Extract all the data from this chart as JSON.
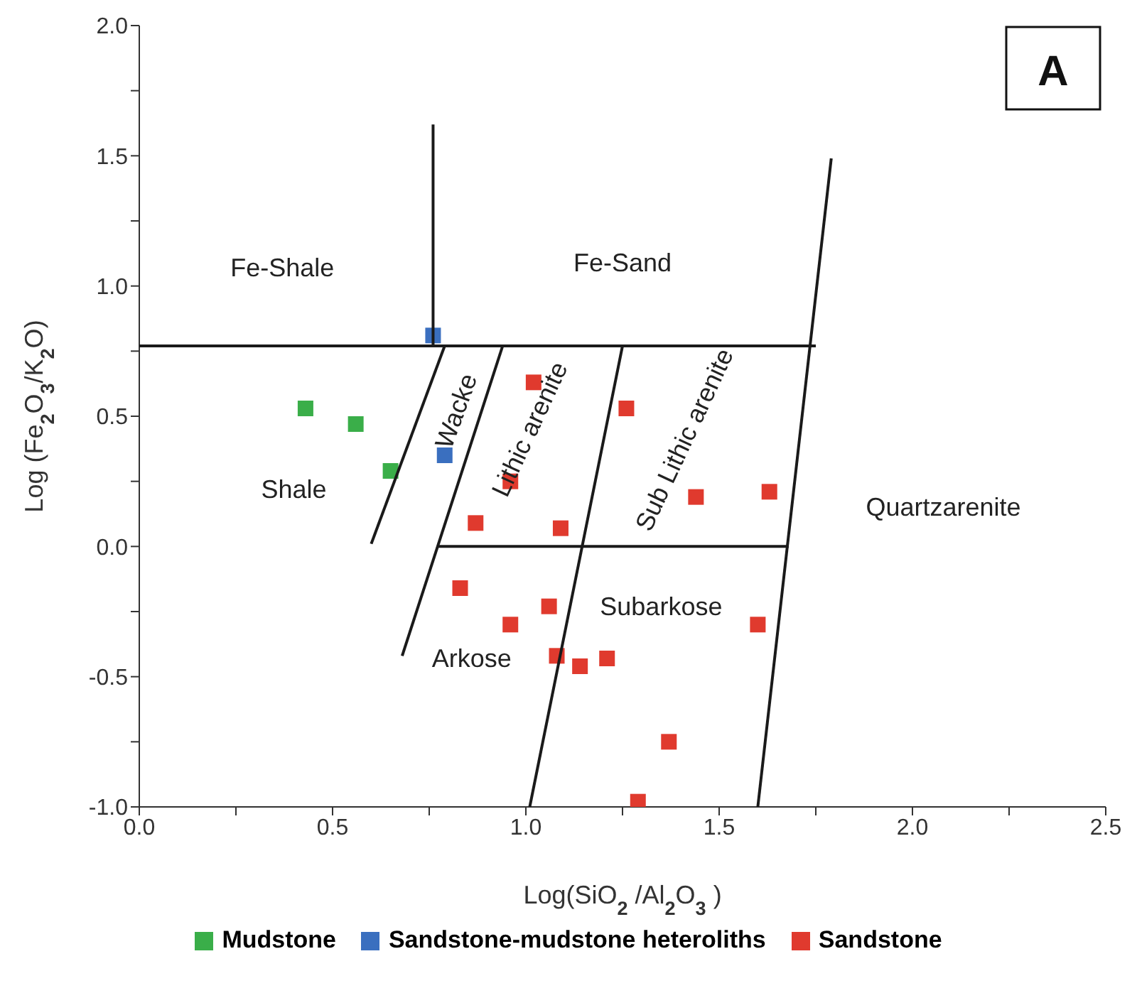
{
  "chart_data": {
    "type": "scatter",
    "xlabel": "Log(SiO$_{2}$ /Al$_{2}$O$_{3}$ )",
    "ylabel": "Log (Fe$_{2}$O$_{3}$/K$_{2}$O)",
    "xlim": [
      0,
      2.5
    ],
    "ylim": [
      -1,
      2
    ],
    "xticks": [
      {
        "value": 0,
        "label": "0.0"
      },
      {
        "value": 0.25,
        "label": null
      },
      {
        "value": 0.5,
        "label": "0.5"
      },
      {
        "value": 0.75,
        "label": null
      },
      {
        "value": 1,
        "label": "1.0"
      },
      {
        "value": 1.25,
        "label": null
      },
      {
        "value": 1.5,
        "label": "1.5"
      },
      {
        "value": 1.75,
        "label": null
      },
      {
        "value": 2,
        "label": "2.0"
      },
      {
        "value": 2.25,
        "label": null
      },
      {
        "value": 2.5,
        "label": "2.5"
      }
    ],
    "yticks": [
      {
        "value": -1,
        "label": "-1.0"
      },
      {
        "value": -0.75,
        "label": null
      },
      {
        "value": -0.5,
        "label": "-0.5"
      },
      {
        "value": -0.25,
        "label": null
      },
      {
        "value": 0,
        "label": "0.0"
      },
      {
        "value": 0.25,
        "label": null
      },
      {
        "value": 0.5,
        "label": "0.5"
      },
      {
        "value": 0.75,
        "label": null
      },
      {
        "value": 1,
        "label": "1.0"
      },
      {
        "value": 1.25,
        "label": null
      },
      {
        "value": 1.5,
        "label": "1.5"
      },
      {
        "value": 1.75,
        "label": null
      },
      {
        "value": 2,
        "label": "2.0"
      }
    ],
    "marker": "square",
    "legend": "bottom",
    "series": [
      {
        "name": "Mudstone",
        "color": "#3aae49",
        "x": [
          0.43,
          0.56,
          0.65
        ],
        "values": [
          0.53,
          0.47,
          0.29
        ]
      },
      {
        "name": "Sandstone-mudstone heteroliths",
        "color": "#3a6fbf",
        "x": [
          0.76,
          0.79
        ],
        "values": [
          0.81,
          0.35
        ]
      },
      {
        "name": "Sandstone",
        "color": "#e03a2e",
        "x": [
          1.02,
          1.26,
          0.96,
          0.87,
          1.09,
          1.44,
          1.63,
          0.83,
          0.96,
          1.06,
          1.08,
          1.14,
          1.21,
          1.6,
          1.37,
          1.29
        ],
        "values": [
          0.63,
          0.53,
          0.25,
          0.09,
          0.07,
          0.19,
          0.21,
          -0.16,
          -0.3,
          -0.23,
          -0.42,
          -0.46,
          -0.43,
          -0.3,
          -0.75,
          -0.98
        ]
      },
      {
        "type": "line",
        "color": "#1a1a1a",
        "marker": "none",
        "x": [
          0,
          1.75
        ],
        "values": [
          0.77,
          0.77
        ]
      },
      {
        "type": "line",
        "color": "#1a1a1a",
        "marker": "none",
        "x": [
          0.76,
          0.76
        ],
        "values": [
          0.77,
          1.62
        ]
      },
      {
        "type": "line",
        "color": "#1a1a1a",
        "marker": "none",
        "x": [
          0.6,
          0.79
        ],
        "values": [
          0.01,
          0.77
        ]
      },
      {
        "type": "line",
        "color": "#1a1a1a",
        "marker": "none",
        "x": [
          0.68,
          0.94
        ],
        "values": [
          -0.42,
          0.77
        ]
      },
      {
        "type": "line",
        "color": "#1a1a1a",
        "marker": "none",
        "x": [
          0.77,
          1.68
        ],
        "values": [
          0,
          0
        ]
      },
      {
        "type": "line",
        "color": "#1a1a1a",
        "marker": "none",
        "x": [
          1.01,
          1.25
        ],
        "values": [
          -1,
          0.77
        ]
      },
      {
        "type": "line",
        "color": "#1a1a1a",
        "marker": "none",
        "x": [
          1.6,
          1.79
        ],
        "values": [
          -1,
          1.49
        ]
      }
    ],
    "annotations": [
      "Fe-Shale",
      "Fe-Sand",
      "Shale",
      "Wacke",
      "Lithic arenite",
      "Sub Lithic arenite",
      "Quartzarenite",
      "Subarkose",
      "Arkose",
      "A"
    ]
  }
}
